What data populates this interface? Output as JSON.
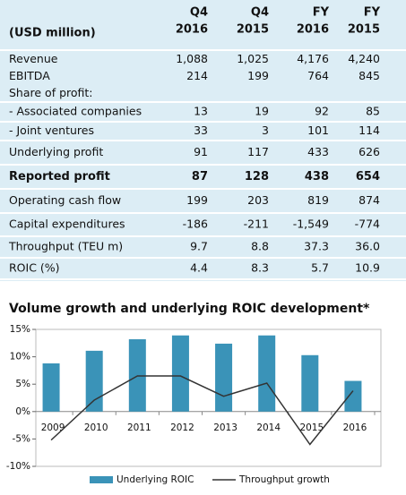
{
  "table": {
    "header": {
      "label": "(USD million)",
      "columns": [
        [
          "Q4",
          "2016"
        ],
        [
          "Q4",
          "2015"
        ],
        [
          "FY",
          "2016"
        ],
        [
          "FY",
          "2015"
        ]
      ]
    },
    "rows": [
      {
        "label": "Revenue",
        "values": [
          "1,088",
          "1,025",
          "4,176",
          "4,240"
        ]
      },
      {
        "label": "EBITDA",
        "values": [
          "214",
          "199",
          "764",
          "845"
        ]
      },
      {
        "label": "Share of profit:",
        "values": []
      },
      {
        "label": "- Associated companies",
        "values": [
          "13",
          "19",
          "92",
          "85"
        ]
      },
      {
        "label": "- Joint ventures",
        "values": [
          "33",
          "3",
          "101",
          "114"
        ]
      },
      {
        "label": "Underlying profit",
        "values": [
          "91",
          "117",
          "433",
          "626"
        ]
      },
      {
        "label": "Reported profit",
        "values": [
          "87",
          "128",
          "438",
          "654"
        ],
        "bold": true
      },
      {
        "label": "Operating cash flow",
        "values": [
          "199",
          "203",
          "819",
          "874"
        ]
      },
      {
        "label": "Capital expenditures",
        "values": [
          "-186",
          "-211",
          "-1,549",
          "-774"
        ]
      },
      {
        "label": "Throughput (TEU m)",
        "values": [
          "9.7",
          "8.8",
          "37.3",
          "36.0"
        ]
      },
      {
        "label": "ROIC (%)",
        "values": [
          "4.4",
          "8.3",
          "5.7",
          "10.9"
        ]
      }
    ]
  },
  "chart_data": {
    "type": "bar",
    "title": "Volume growth and underlying ROIC development*",
    "categories": [
      "2009",
      "2010",
      "2011",
      "2012",
      "2013",
      "2014",
      "2015",
      "2016"
    ],
    "series": [
      {
        "name": "Underlying ROIC",
        "type": "bar",
        "color": "#3a93b8",
        "values": [
          8.8,
          11.1,
          13.2,
          13.9,
          12.4,
          13.9,
          10.3,
          5.6
        ]
      },
      {
        "name": "Throughput growth",
        "type": "line",
        "color": "#333333",
        "values": [
          -5.2,
          2.1,
          6.5,
          6.5,
          2.8,
          5.2,
          -6.0,
          3.8
        ]
      }
    ],
    "ylim": [
      -10,
      15
    ],
    "yticks": [
      {
        "value": 15,
        "label": "15%"
      },
      {
        "value": 10,
        "label": "10%"
      },
      {
        "value": 5,
        "label": "5%"
      },
      {
        "value": 0,
        "label": "0%"
      },
      {
        "value": -5,
        "label": "-5%"
      },
      {
        "value": -10,
        "label": "-10%"
      }
    ]
  }
}
